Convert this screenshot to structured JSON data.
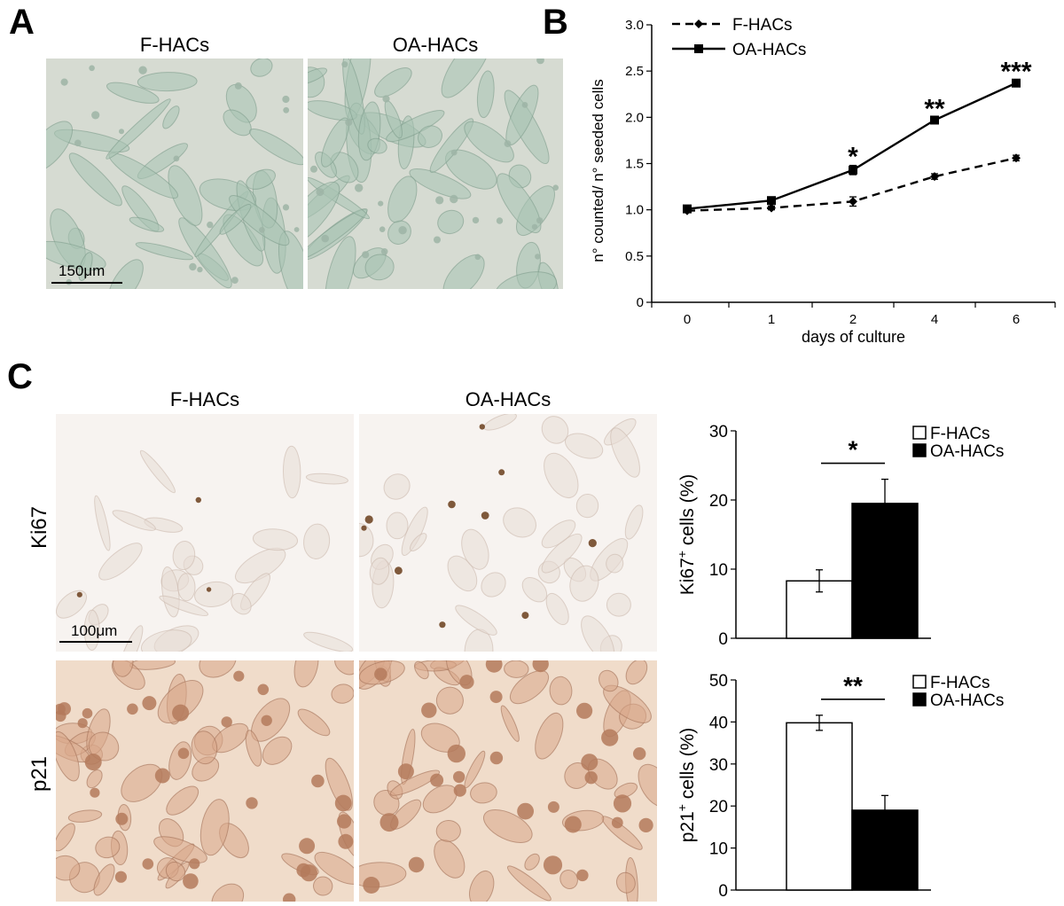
{
  "panels": {
    "A": {
      "letter": "A",
      "left_title": "F-HACs",
      "right_title": "OA-HACs",
      "scale_label": "150μm"
    },
    "B": {
      "letter": "B"
    },
    "C": {
      "letter": "C",
      "left_title": "F-HACs",
      "right_title": "OA-HACs",
      "row1_label": "Ki67",
      "row2_label": "p21",
      "scale_label": "100μm"
    }
  },
  "colors": {
    "micro_A_bg": "#d6dbd2",
    "micro_A_cell": "#a7c2b3",
    "ki67_bg": "#f7f3f0",
    "ki67_cell": "#e7dcd6",
    "ki67_nucleus": "#6a3d1b",
    "p21_bg": "#f0dcca",
    "p21_cell": "#d9a88a",
    "p21_nucleus": "#b47a5c"
  },
  "chart_data": [
    {
      "type": "line",
      "panel": "B",
      "x": [
        "0",
        "1",
        "2",
        "4",
        "6"
      ],
      "xlabel": "days of culture",
      "ylabel": "n° counted/ n° seeded cells",
      "ylim": [
        0,
        3.0
      ],
      "yticks": [
        "0",
        "0.5",
        "1.0",
        "1.5",
        "2.0",
        "2.5",
        "3.0"
      ],
      "legend_position": "top-left",
      "series": [
        {
          "name": "F-HACs",
          "values": [
            0.99,
            1.02,
            1.09,
            1.36,
            1.56
          ],
          "errors": [
            0.02,
            0.02,
            0.05,
            0.03,
            0.03
          ],
          "style": "dashed",
          "marker": "diamond"
        },
        {
          "name": "OA-HACs",
          "values": [
            1.01,
            1.1,
            1.43,
            1.97,
            2.37
          ],
          "errors": [
            0.02,
            0.02,
            0.05,
            0.03,
            0.03
          ],
          "style": "solid",
          "marker": "square"
        }
      ],
      "annotations": [
        {
          "x": "2",
          "text": "*"
        },
        {
          "x": "4",
          "text": "**"
        },
        {
          "x": "6",
          "text": "***"
        }
      ]
    },
    {
      "type": "bar",
      "panel": "C-Ki67",
      "categories": [
        "F-HACs",
        "OA-HACs"
      ],
      "values": [
        8.3,
        19.5
      ],
      "errors": [
        1.6,
        3.5
      ],
      "fill": [
        "#ffffff",
        "#000000"
      ],
      "ylabel_main": "Ki67",
      "ylabel_sup": "+",
      "ylabel_tail": " cells (%)",
      "ylim": [
        0,
        30
      ],
      "yticks": [
        "0",
        "10",
        "20",
        "30"
      ],
      "legend_position": "top-right",
      "significance": "*"
    },
    {
      "type": "bar",
      "panel": "C-p21",
      "categories": [
        "F-HACs",
        "OA-HACs"
      ],
      "values": [
        39.8,
        19.0
      ],
      "errors": [
        1.8,
        3.5
      ],
      "fill": [
        "#ffffff",
        "#000000"
      ],
      "ylabel_main": "p21",
      "ylabel_sup": "+",
      "ylabel_tail": " cells (%)",
      "ylim": [
        0,
        50
      ],
      "yticks": [
        "0",
        "10",
        "20",
        "30",
        "40",
        "50"
      ],
      "legend_position": "top-right",
      "significance": "**"
    }
  ]
}
